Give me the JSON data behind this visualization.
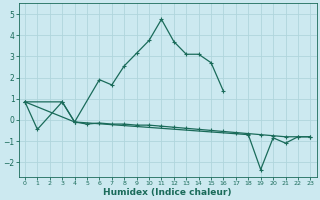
{
  "xlabel": "Humidex (Indice chaleur)",
  "xlim": [
    -0.5,
    23.5
  ],
  "ylim": [
    -2.7,
    5.5
  ],
  "xticks": [
    0,
    1,
    2,
    3,
    4,
    5,
    6,
    7,
    8,
    9,
    10,
    11,
    12,
    13,
    14,
    15,
    16,
    17,
    18,
    19,
    20,
    21,
    22,
    23
  ],
  "yticks": [
    -2,
    -1,
    0,
    1,
    2,
    3,
    4,
    5
  ],
  "background_color": "#cce9f0",
  "grid_color": "#b0d5dc",
  "line_color": "#1a6b5a",
  "lx1": [
    0,
    1,
    3,
    4,
    6,
    7,
    8,
    9,
    10,
    11,
    12,
    13,
    14,
    15,
    16
  ],
  "ly1": [
    0.85,
    -0.45,
    0.85,
    -0.1,
    1.9,
    1.65,
    2.55,
    3.15,
    3.75,
    4.75,
    3.7,
    3.1,
    3.1,
    2.7,
    1.35
  ],
  "lx2": [
    0,
    3,
    4,
    5,
    6,
    7,
    8,
    9,
    10,
    11,
    12,
    13,
    14,
    15,
    16,
    17,
    18,
    19,
    20,
    21,
    22,
    23
  ],
  "ly2": [
    0.85,
    0.85,
    -0.1,
    -0.2,
    -0.15,
    -0.2,
    -0.2,
    -0.25,
    -0.25,
    -0.3,
    -0.35,
    -0.4,
    -0.45,
    -0.5,
    -0.55,
    -0.6,
    -0.65,
    -0.7,
    -0.75,
    -0.8,
    -0.8,
    -0.8
  ],
  "lx3": [
    0,
    4,
    18,
    19,
    20,
    21,
    22,
    23
  ],
  "ly3": [
    0.85,
    -0.1,
    -0.7,
    -2.35,
    -0.85,
    -1.1,
    -0.8,
    -0.8
  ],
  "markersize": 3.5,
  "linewidth": 0.9,
  "xtick_fontsize": 4.5,
  "ytick_fontsize": 5.5,
  "xlabel_fontsize": 6.5
}
